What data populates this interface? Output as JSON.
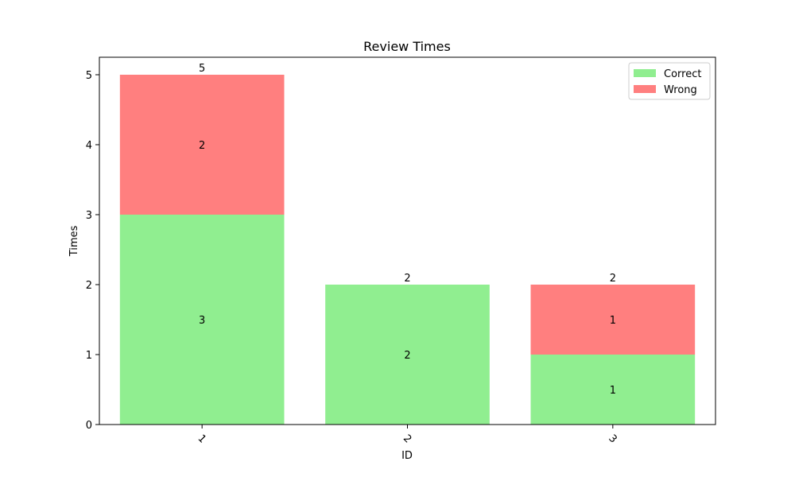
{
  "chart_data": {
    "type": "bar",
    "stacked": true,
    "title": "Review Times",
    "xlabel": "ID",
    "ylabel": "Times",
    "categories": [
      "1",
      "2",
      "3"
    ],
    "series": [
      {
        "name": "Correct",
        "values": [
          3,
          2,
          1
        ],
        "color": "#90EE90"
      },
      {
        "name": "Wrong",
        "values": [
          2,
          0,
          1
        ],
        "color": "#FF7F7F"
      }
    ],
    "totals": [
      5,
      2,
      2
    ],
    "ylim": [
      0,
      5.25
    ],
    "yticks": [
      "0",
      "1",
      "2",
      "3",
      "4",
      "5"
    ],
    "xtick_rotation_deg": 45,
    "legend_position": "top-right",
    "grid": false
  }
}
